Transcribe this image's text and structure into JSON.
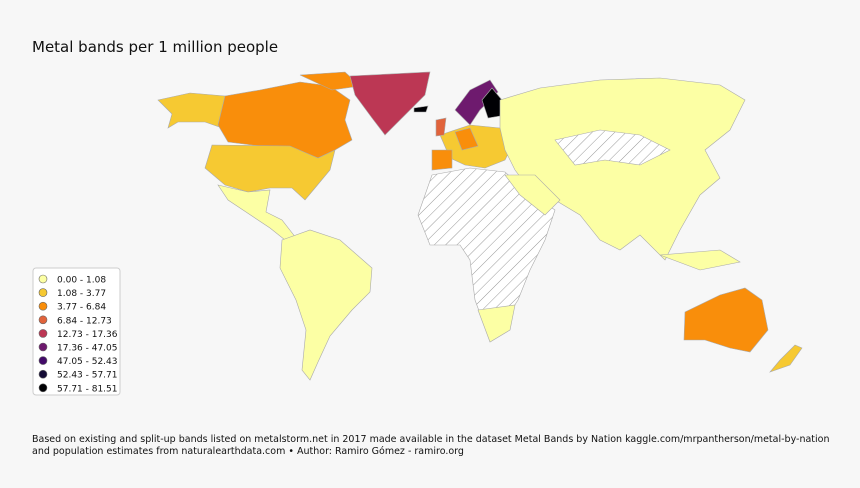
{
  "title": "Metal bands per 1 million people",
  "legend": [
    {
      "label": "0.00 - 1.08",
      "color": "#fcffa4"
    },
    {
      "label": "1.08 - 3.77",
      "color": "#f6c932"
    },
    {
      "label": "3.77 - 6.84",
      "color": "#f98e0b"
    },
    {
      "label": "6.84 - 12.73",
      "color": "#e1633b"
    },
    {
      "label": "12.73 - 17.36",
      "color": "#bc3754"
    },
    {
      "label": "17.36 - 47.05",
      "color": "#6e1a6e"
    },
    {
      "label": "47.05 - 52.43",
      "color": "#420a68"
    },
    {
      "label": "52.43 - 57.71",
      "color": "#140b35"
    },
    {
      "label": "57.71 - 81.51",
      "color": "#000004"
    }
  ],
  "footer": [
    "Based on existing and split-up bands listed on metalstorm.net in 2017 made available in the dataset Metal Bands by Nation kaggle.com/mrpantherson/metal-by-nation",
    "and population estimates from naturalearthdata.com • Author: Ramiro Gómez - ramiro.org"
  ]
}
